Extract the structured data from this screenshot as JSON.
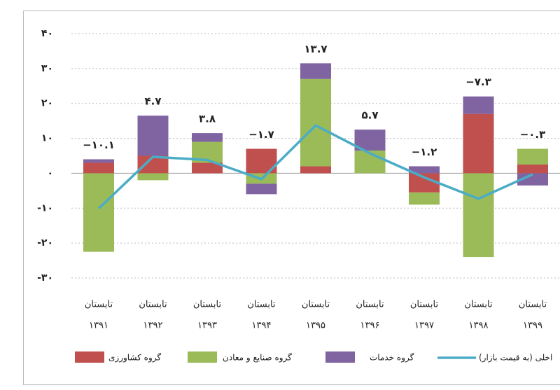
{
  "chart_data": {
    "type": "bar",
    "categories": [
      [
        "تابستان",
        "۱۳۹۱"
      ],
      [
        "تابستان",
        "۱۳۹۲"
      ],
      [
        "تابستان",
        "۱۳۹۳"
      ],
      [
        "تابستان",
        "۱۳۹۴"
      ],
      [
        "تابستان",
        "۱۳۹۵"
      ],
      [
        "تابستان",
        "۱۳۹۶"
      ],
      [
        "تابستان",
        "۱۳۹۷"
      ],
      [
        "تابستان",
        "۱۳۹۸"
      ],
      [
        "تابستان",
        "۱۳۹۹"
      ]
    ],
    "series": [
      {
        "name": "گروه کشاورزی",
        "color": "#c0504d",
        "values": [
          3,
          5,
          3,
          7,
          2,
          0,
          -5.5,
          17,
          2.5
        ]
      },
      {
        "name": "گروه صنایع و معادن",
        "color": "#9bbb59",
        "values": [
          -22.5,
          -2,
          6,
          -3,
          25,
          6.5,
          -3.5,
          -24,
          4.5
        ]
      },
      {
        "name": "گروه خدمات",
        "color": "#8064a2",
        "values": [
          1,
          11.5,
          2.5,
          -3,
          4.5,
          6,
          2,
          5,
          -3.5
        ]
      }
    ],
    "line": {
      "name": "اخلی (به قیمت بازار)",
      "color": "#4bacc6",
      "values": [
        -10.1,
        4.7,
        3.8,
        -1.7,
        13.7,
        5.7,
        -1.2,
        -7.3,
        -0.3
      ],
      "value_labels": [
        "−۱۰.۱",
        "۴.۷",
        "۳.۸",
        "−۱.۷",
        "۱۳.۷",
        "۵.۷",
        "−۱.۲",
        "−۷.۳",
        "−۰.۳"
      ]
    },
    "ylim": [
      -30,
      40
    ],
    "yticks": [
      {
        "value": -30,
        "label": "-۳۰"
      },
      {
        "value": -20,
        "label": "-۲۰"
      },
      {
        "value": -10,
        "label": "-۱۰"
      },
      {
        "value": 0,
        "label": "۰"
      },
      {
        "value": 10,
        "label": "۱۰"
      },
      {
        "value": 20,
        "label": "۲۰"
      },
      {
        "value": 30,
        "label": "۳۰"
      },
      {
        "value": 40,
        "label": "۴۰"
      }
    ],
    "grid": true
  }
}
